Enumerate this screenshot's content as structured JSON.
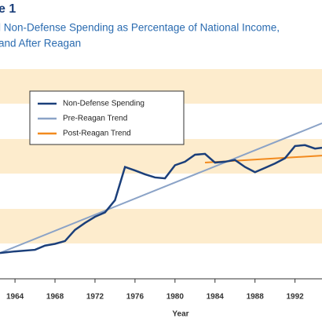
{
  "chart_data": {
    "type": "line",
    "title": "e 1",
    "subtitle": [
      "l Non-Defense Spending as Percentage of National Income,",
      "and After Reagan"
    ],
    "x_label": "Year",
    "xlim": [
      1962.5,
      1994.7
    ],
    "ylim": [
      8,
      20
    ],
    "xticks": [
      1964,
      1968,
      1972,
      1976,
      1980,
      1984,
      1988,
      1992
    ],
    "series": [
      {
        "name": "Non-Defense Spending",
        "color": "#1b3f7a",
        "x": [
          1962.5,
          1964,
          1966,
          1967,
          1968,
          1969,
          1970,
          1971,
          1972,
          1973,
          1974,
          1975,
          1976,
          1977,
          1978,
          1979,
          1980,
          1981,
          1982,
          1983,
          1984,
          1985,
          1986,
          1987,
          1988,
          1989,
          1990,
          1991,
          1992,
          1993,
          1994,
          1994.7
        ],
        "values": [
          9.48,
          9.57,
          9.66,
          9.9,
          10.0,
          10.16,
          10.8,
          11.2,
          11.55,
          11.8,
          12.5,
          14.4,
          14.2,
          13.98,
          13.8,
          13.75,
          14.5,
          14.7,
          15.1,
          15.15,
          14.65,
          14.7,
          14.8,
          14.4,
          14.1,
          14.35,
          14.6,
          14.9,
          15.6,
          15.65,
          15.45,
          15.5
        ]
      },
      {
        "name": "Pre-Reagan Trend",
        "color": "#8ba3c7",
        "x": [
          1962.5,
          1994.7
        ],
        "values": [
          9.48,
          16.9
        ]
      },
      {
        "name": "Post-Reagan Trend",
        "color": "#f28a1e",
        "x": [
          1983,
          1994.7
        ],
        "values": [
          14.65,
          15.05
        ]
      }
    ],
    "legend": "upper left"
  }
}
